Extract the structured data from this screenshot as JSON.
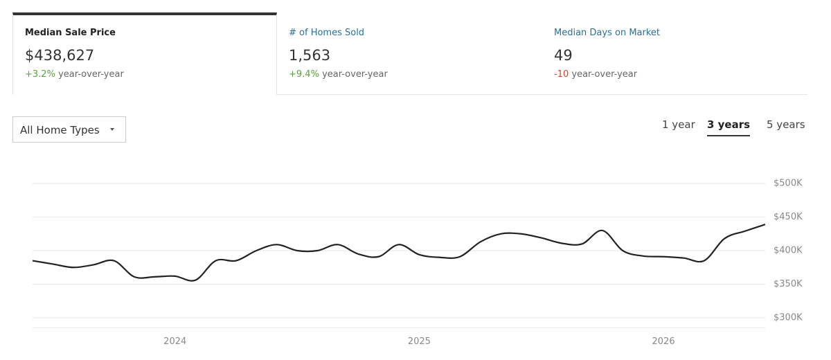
{
  "tabs": [
    {
      "title": "Median Sale Price",
      "value": "$438,627",
      "change": "+3.2%",
      "change_label": "year-over-year",
      "change_color": "#5aa13b",
      "active": true
    },
    {
      "title": "# of Homes Sold",
      "value": "1,563",
      "change": "+9.4%",
      "change_label": "year-over-year",
      "change_color": "#5aa13b",
      "active": false
    },
    {
      "title": "Median Days on Market",
      "value": "49",
      "change": "-10",
      "change_label": "year-over-year",
      "change_color": "#d9412e",
      "active": false
    }
  ],
  "filter": "All Home Types",
  "ranges": [
    "1 year",
    "3 years",
    "5 years"
  ],
  "active_range": 1,
  "chart_data": {
    "type": "line",
    "color": "#222222",
    "grid": true,
    "categories": [
      null,
      null,
      null,
      null,
      null,
      null,
      null,
      "2024",
      null,
      null,
      null,
      null,
      null,
      null,
      null,
      null,
      null,
      null,
      null,
      "2025",
      null,
      null,
      null,
      null,
      null,
      null,
      null,
      null,
      null,
      null,
      null,
      "2026",
      null,
      null,
      null,
      null,
      null
    ],
    "values": [
      385000,
      380000,
      375000,
      379000,
      385000,
      361000,
      361000,
      362000,
      356000,
      385000,
      385000,
      400000,
      409000,
      400000,
      400000,
      409000,
      395000,
      391000,
      409000,
      394000,
      390000,
      391000,
      413000,
      425000,
      425000,
      419000,
      411000,
      410000,
      430000,
      400000,
      392000,
      391000,
      389000,
      385000,
      418000,
      429000,
      439000
    ],
    "ylim": [
      285000,
      510000
    ],
    "yticks": [
      {
        "value": 300000,
        "label": "$300K"
      },
      {
        "value": 350000,
        "label": "$350K"
      },
      {
        "value": 400000,
        "label": "$400K"
      },
      {
        "value": 450000,
        "label": "$450K"
      },
      {
        "value": 500000,
        "label": "$500K"
      }
    ]
  }
}
